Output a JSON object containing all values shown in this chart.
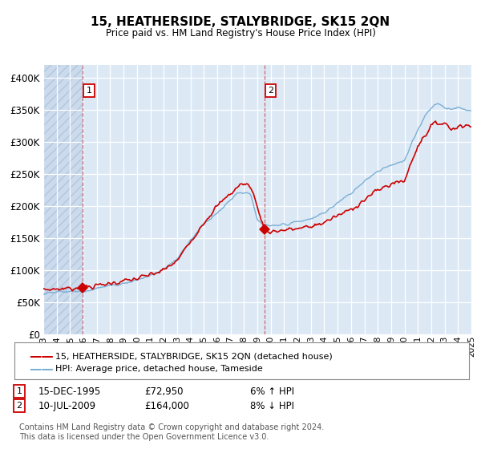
{
  "title": "15, HEATHERSIDE, STALYBRIDGE, SK15 2QN",
  "subtitle": "Price paid vs. HM Land Registry's House Price Index (HPI)",
  "ylim": [
    0,
    420000
  ],
  "yticks": [
    0,
    50000,
    100000,
    150000,
    200000,
    250000,
    300000,
    350000,
    400000
  ],
  "ytick_labels": [
    "£0",
    "£50K",
    "£100K",
    "£150K",
    "£200K",
    "£250K",
    "£300K",
    "£350K",
    "£400K"
  ],
  "background_color": "#dce9f5",
  "grid_color": "#ffffff",
  "transaction1": {
    "date_idx": 1995.96,
    "price": 72950,
    "label": "1",
    "date_str": "15-DEC-1995",
    "price_str": "£72,950",
    "hpi_str": "6% ↑ HPI"
  },
  "transaction2": {
    "date_idx": 2009.53,
    "price": 164000,
    "label": "2",
    "date_str": "10-JUL-2009",
    "price_str": "£164,000",
    "hpi_str": "8% ↓ HPI"
  },
  "line_red_color": "#cc0000",
  "line_blue_color": "#7aafd4",
  "marker_color": "#cc0000",
  "legend_label_red": "15, HEATHERSIDE, STALYBRIDGE, SK15 2QN (detached house)",
  "legend_label_blue": "HPI: Average price, detached house, Tameside",
  "footnote": "Contains HM Land Registry data © Crown copyright and database right 2024.\nThis data is licensed under the Open Government Licence v3.0.",
  "xstart": 1993,
  "xend": 2025,
  "red_keypoints_t": [
    1993,
    1995.96,
    1997,
    1998,
    1999,
    2000,
    2001,
    2002,
    2003,
    2004,
    2005,
    2006,
    2007,
    2007.8,
    2008.5,
    2009.53,
    2010,
    2011,
    2012,
    2013,
    2014,
    2015,
    2016,
    2017,
    2018,
    2019,
    2020,
    2021,
    2021.5,
    2022,
    2022.5,
    2023,
    2023.5,
    2024,
    2025
  ],
  "red_keypoints_v": [
    70000,
    72950,
    76000,
    80000,
    83000,
    87000,
    93000,
    100000,
    115000,
    145000,
    175000,
    200000,
    220000,
    235000,
    232000,
    164000,
    160000,
    163000,
    165000,
    168000,
    175000,
    185000,
    195000,
    210000,
    225000,
    235000,
    240000,
    295000,
    310000,
    325000,
    330000,
    330000,
    320000,
    325000,
    325000
  ],
  "blue_keypoints_t": [
    1993,
    1995,
    1995.96,
    1997,
    1998,
    1999,
    2000,
    2001,
    2002,
    2003,
    2004,
    2005,
    2006,
    2007,
    2007.5,
    2008.5,
    2009,
    2009.53,
    2010,
    2011,
    2012,
    2013,
    2014,
    2015,
    2016,
    2017,
    2018,
    2019,
    2020,
    2021,
    2021.5,
    2022,
    2022.5,
    2023,
    2023.5,
    2024,
    2024.5,
    2025
  ],
  "blue_keypoints_v": [
    65000,
    67000,
    68000,
    72000,
    76000,
    80000,
    85000,
    92000,
    102000,
    118000,
    148000,
    172000,
    190000,
    210000,
    222000,
    218000,
    178000,
    170000,
    168000,
    172000,
    175000,
    180000,
    190000,
    205000,
    220000,
    240000,
    255000,
    265000,
    270000,
    320000,
    340000,
    355000,
    360000,
    355000,
    350000,
    355000,
    350000,
    348000
  ]
}
